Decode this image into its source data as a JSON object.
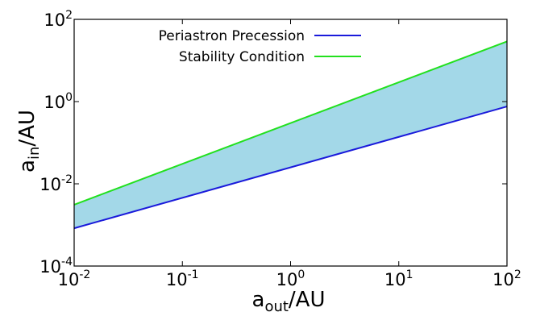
{
  "chart_data": {
    "type": "line",
    "x_scale": "log",
    "y_scale": "log",
    "xlim": [
      0.01,
      100
    ],
    "ylim": [
      0.0001,
      100
    ],
    "x_ticks": [
      0.01,
      0.1,
      1,
      10,
      100
    ],
    "y_ticks": [
      0.0001,
      0.01,
      1,
      100
    ],
    "x_tick_labels": [
      {
        "base": "10",
        "exp": "-2"
      },
      {
        "base": "10",
        "exp": "-1"
      },
      {
        "base": "10",
        "exp": "0"
      },
      {
        "base": "10",
        "exp": "1"
      },
      {
        "base": "10",
        "exp": "2"
      }
    ],
    "y_tick_labels": [
      {
        "base": "10",
        "exp": "-4"
      },
      {
        "base": "10",
        "exp": "-2"
      },
      {
        "base": "10",
        "exp": "0"
      },
      {
        "base": "10",
        "exp": "2"
      }
    ],
    "xlabel": {
      "main": "a",
      "sub": "out",
      "unit": "/AU"
    },
    "ylabel": {
      "main": "a",
      "sub": "in",
      "unit": "/AU"
    },
    "grid": false,
    "legend_position": "top-left",
    "series": [
      {
        "name": "Periastron Precession",
        "color": "#1a1adb",
        "x": [
          0.01,
          100
        ],
        "y": [
          0.00083,
          0.76
        ]
      },
      {
        "name": "Stability Condition",
        "color": "#22e01e",
        "x": [
          0.01,
          100
        ],
        "y": [
          0.0031,
          29
        ]
      }
    ],
    "fill_between": {
      "color": "#a3d8e8",
      "lower": "Periastron Precession",
      "upper": "Stability Condition"
    }
  }
}
